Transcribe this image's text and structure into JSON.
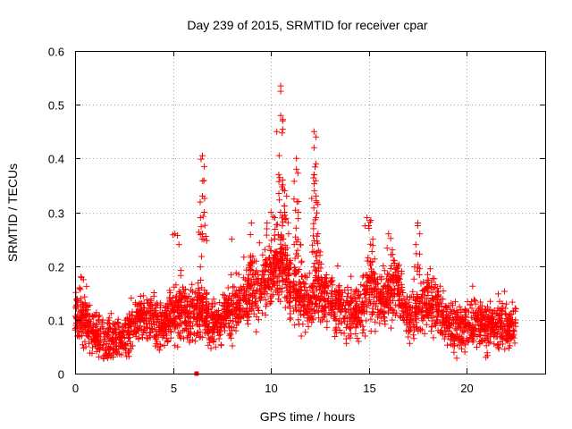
{
  "chart_data": {
    "type": "scatter",
    "title": "Day 239 of 2015, SRMTID for receiver cpar",
    "xlabel": "GPS time / hours",
    "ylabel": "SRMTID / TECUs",
    "xlim": [
      0,
      24
    ],
    "ylim": [
      0,
      0.6
    ],
    "x_ticks": [
      0,
      5,
      10,
      15,
      20
    ],
    "y_ticks": [
      0,
      0.1,
      0.2,
      0.3,
      0.4,
      0.5,
      0.6
    ],
    "x_tick_labels": [
      "0",
      "5",
      "10",
      "15",
      "20"
    ],
    "y_tick_labels": [
      "0",
      "0.1",
      "0.2",
      "0.3",
      "0.4",
      "0.5",
      "0.6"
    ],
    "grid": true,
    "legend": "none",
    "marker": "plus",
    "color": "#ff0000",
    "series": [
      {
        "name": "SRMTID",
        "profile": [
          {
            "x": 0.0,
            "y": 0.11
          },
          {
            "x": 0.5,
            "y": 0.1
          },
          {
            "x": 1.0,
            "y": 0.07
          },
          {
            "x": 1.5,
            "y": 0.065
          },
          {
            "x": 2.0,
            "y": 0.06
          },
          {
            "x": 2.5,
            "y": 0.065
          },
          {
            "x": 3.0,
            "y": 0.09
          },
          {
            "x": 3.5,
            "y": 0.11
          },
          {
            "x": 4.0,
            "y": 0.1
          },
          {
            "x": 4.5,
            "y": 0.09
          },
          {
            "x": 5.0,
            "y": 0.11
          },
          {
            "x": 5.5,
            "y": 0.12
          },
          {
            "x": 6.0,
            "y": 0.1
          },
          {
            "x": 6.5,
            "y": 0.12
          },
          {
            "x": 7.0,
            "y": 0.09
          },
          {
            "x": 7.5,
            "y": 0.1
          },
          {
            "x": 8.0,
            "y": 0.12
          },
          {
            "x": 8.5,
            "y": 0.14
          },
          {
            "x": 9.0,
            "y": 0.16
          },
          {
            "x": 9.5,
            "y": 0.17
          },
          {
            "x": 10.0,
            "y": 0.18
          },
          {
            "x": 10.5,
            "y": 0.2
          },
          {
            "x": 11.0,
            "y": 0.16
          },
          {
            "x": 11.5,
            "y": 0.14
          },
          {
            "x": 12.0,
            "y": 0.13
          },
          {
            "x": 12.5,
            "y": 0.15
          },
          {
            "x": 13.0,
            "y": 0.14
          },
          {
            "x": 13.5,
            "y": 0.13
          },
          {
            "x": 14.0,
            "y": 0.12
          },
          {
            "x": 14.5,
            "y": 0.11
          },
          {
            "x": 15.0,
            "y": 0.16
          },
          {
            "x": 15.5,
            "y": 0.13
          },
          {
            "x": 16.0,
            "y": 0.15
          },
          {
            "x": 16.5,
            "y": 0.17
          },
          {
            "x": 17.0,
            "y": 0.1
          },
          {
            "x": 17.5,
            "y": 0.12
          },
          {
            "x": 18.0,
            "y": 0.14
          },
          {
            "x": 18.5,
            "y": 0.12
          },
          {
            "x": 19.0,
            "y": 0.09
          },
          {
            "x": 19.5,
            "y": 0.085
          },
          {
            "x": 20.0,
            "y": 0.09
          },
          {
            "x": 20.5,
            "y": 0.1
          },
          {
            "x": 21.0,
            "y": 0.09
          },
          {
            "x": 21.5,
            "y": 0.085
          },
          {
            "x": 22.0,
            "y": 0.09
          },
          {
            "x": 22.5,
            "y": 0.09
          }
        ],
        "peaks": [
          {
            "x": 0.3,
            "y": 0.18
          },
          {
            "x": 5.1,
            "y": 0.26
          },
          {
            "x": 5.3,
            "y": 0.24
          },
          {
            "x": 6.5,
            "y": 0.405
          },
          {
            "x": 6.6,
            "y": 0.385
          },
          {
            "x": 6.5,
            "y": 0.33
          },
          {
            "x": 6.6,
            "y": 0.3
          },
          {
            "x": 6.4,
            "y": 0.29
          },
          {
            "x": 6.5,
            "y": 0.26
          },
          {
            "x": 8.0,
            "y": 0.25
          },
          {
            "x": 9.0,
            "y": 0.28
          },
          {
            "x": 9.8,
            "y": 0.28
          },
          {
            "x": 10.0,
            "y": 0.3
          },
          {
            "x": 10.2,
            "y": 0.29
          },
          {
            "x": 10.3,
            "y": 0.45
          },
          {
            "x": 10.4,
            "y": 0.37
          },
          {
            "x": 10.5,
            "y": 0.535
          },
          {
            "x": 10.5,
            "y": 0.525
          },
          {
            "x": 10.5,
            "y": 0.48
          },
          {
            "x": 10.6,
            "y": 0.47
          },
          {
            "x": 10.6,
            "y": 0.36
          },
          {
            "x": 10.7,
            "y": 0.34
          },
          {
            "x": 10.8,
            "y": 0.33
          },
          {
            "x": 10.7,
            "y": 0.3
          },
          {
            "x": 10.9,
            "y": 0.26
          },
          {
            "x": 11.3,
            "y": 0.4
          },
          {
            "x": 11.3,
            "y": 0.38
          },
          {
            "x": 11.4,
            "y": 0.32
          },
          {
            "x": 11.4,
            "y": 0.3
          },
          {
            "x": 11.5,
            "y": 0.24
          },
          {
            "x": 12.2,
            "y": 0.45
          },
          {
            "x": 12.3,
            "y": 0.44
          },
          {
            "x": 12.2,
            "y": 0.42
          },
          {
            "x": 12.3,
            "y": 0.39
          },
          {
            "x": 12.2,
            "y": 0.37
          },
          {
            "x": 12.3,
            "y": 0.33
          },
          {
            "x": 12.3,
            "y": 0.29
          },
          {
            "x": 12.4,
            "y": 0.26
          },
          {
            "x": 12.5,
            "y": 0.22
          },
          {
            "x": 14.9,
            "y": 0.29
          },
          {
            "x": 15.1,
            "y": 0.285
          },
          {
            "x": 15.0,
            "y": 0.27
          },
          {
            "x": 15.2,
            "y": 0.25
          },
          {
            "x": 16.0,
            "y": 0.26
          },
          {
            "x": 16.2,
            "y": 0.23
          },
          {
            "x": 16.3,
            "y": 0.21
          },
          {
            "x": 16.5,
            "y": 0.2
          },
          {
            "x": 17.5,
            "y": 0.28
          },
          {
            "x": 17.6,
            "y": 0.26
          },
          {
            "x": 17.4,
            "y": 0.24
          }
        ],
        "outliers": [
          {
            "x": 6.2,
            "y": 0.0
          }
        ],
        "approx_point_count": 2900,
        "scatter_spread": 0.05
      }
    ]
  }
}
